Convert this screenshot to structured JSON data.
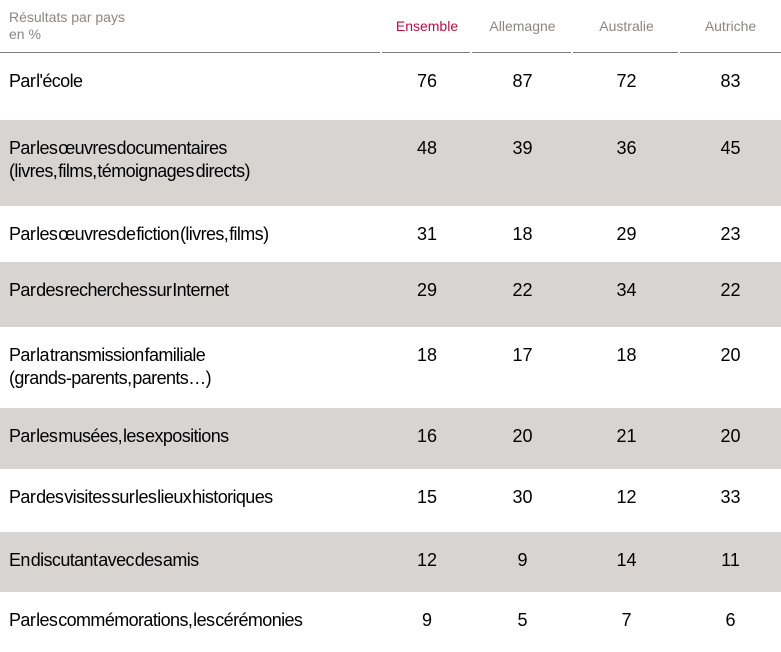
{
  "header": {
    "title_line1": "Résultats par pays",
    "title_line2": "en %"
  },
  "colors": {
    "accent_red": "#c00a3e",
    "row_shade": "#d8d4d2",
    "header_text_gray": "#8b8682",
    "divider_gray": "#7d7a78"
  },
  "chart_data": {
    "type": "table",
    "title": "Résultats par pays en %",
    "columns": [
      "Ensemble",
      "Allemagne",
      "Australie",
      "Autriche"
    ],
    "rows": [
      {
        "label": "Par l'école",
        "sublabel": "",
        "values": [
          76,
          87,
          72,
          83
        ]
      },
      {
        "label": "Par les œuvres documentaires",
        "sublabel": "(livres, films, témoignages  directs)",
        "values": [
          48,
          39,
          36,
          45
        ]
      },
      {
        "label": "Par les œuvres de fiction (livres, films)",
        "sublabel": "",
        "values": [
          31,
          18,
          29,
          23
        ]
      },
      {
        "label": "Par des recherches sur Internet",
        "sublabel": "",
        "values": [
          29,
          22,
          34,
          22
        ]
      },
      {
        "label": "Par la transmission familiale",
        "sublabel": "(grands-parents, parents…)",
        "values": [
          18,
          17,
          18,
          20
        ]
      },
      {
        "label": "Par les musées, les expositions",
        "sublabel": "",
        "values": [
          16,
          20,
          21,
          20
        ]
      },
      {
        "label": "Par des visites sur les lieux historiques",
        "sublabel": "",
        "values": [
          15,
          30,
          12,
          33
        ]
      },
      {
        "label": "En discutant avec des amis",
        "sublabel": "",
        "values": [
          12,
          9,
          14,
          11
        ]
      },
      {
        "label": "Par les commémorations, les cérémonies",
        "sublabel": "",
        "values": [
          9,
          5,
          7,
          6
        ]
      }
    ]
  }
}
